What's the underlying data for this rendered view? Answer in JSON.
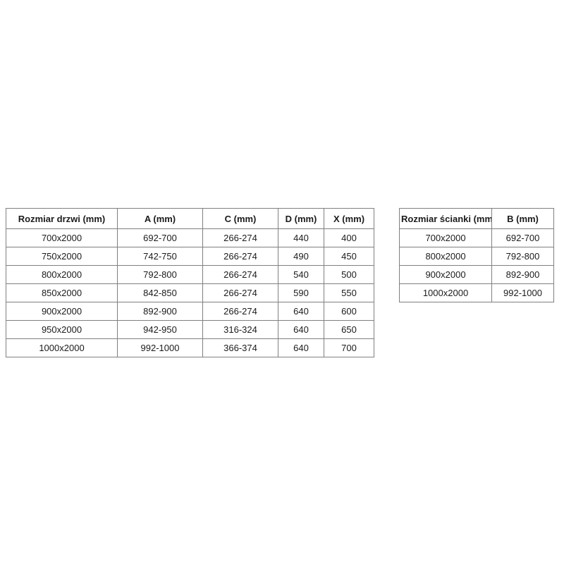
{
  "page": {
    "background": "#ffffff",
    "border_color": "#808080",
    "text_color": "#1b1b1b"
  },
  "tables": [
    {
      "name": "door-size-table",
      "columns": [
        "Rozmiar drzwi (mm)",
        "A (mm)",
        "C (mm)",
        "D (mm)",
        "X (mm)"
      ],
      "rows": [
        [
          "700x2000",
          "692-700",
          "266-274",
          "440",
          "400"
        ],
        [
          "750x2000",
          "742-750",
          "266-274",
          "490",
          "450"
        ],
        [
          "800x2000",
          "792-800",
          "266-274",
          "540",
          "500"
        ],
        [
          "850x2000",
          "842-850",
          "266-274",
          "590",
          "550"
        ],
        [
          "900x2000",
          "892-900",
          "266-274",
          "640",
          "600"
        ],
        [
          "950x2000",
          "942-950",
          "316-324",
          "640",
          "650"
        ],
        [
          "1000x2000",
          "992-1000",
          "366-374",
          "640",
          "700"
        ]
      ]
    },
    {
      "name": "wall-size-table",
      "columns": [
        "Rozmiar ścianki (mm)",
        "B (mm)"
      ],
      "rows": [
        [
          "700x2000",
          "692-700"
        ],
        [
          "800x2000",
          "792-800"
        ],
        [
          "900x2000",
          "892-900"
        ],
        [
          "1000x2000",
          "992-1000"
        ]
      ]
    }
  ]
}
